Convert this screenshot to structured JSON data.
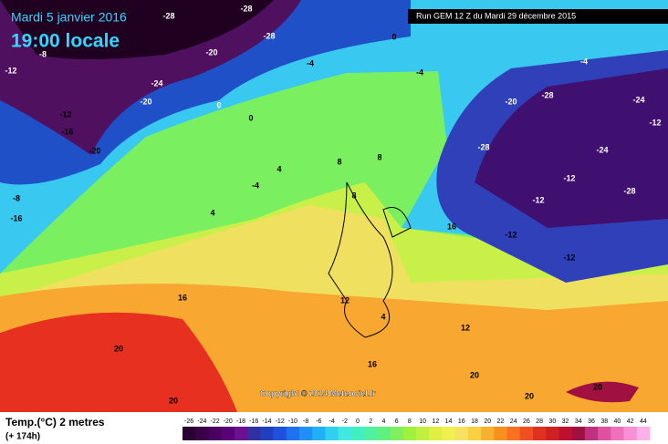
{
  "header": {
    "date": "Mardi 5 janvier 2016",
    "time": "19:00 locale",
    "run": "Run GEM 12 Z du Mardi 29 décembre 2015"
  },
  "map": {
    "copyright": "Copyright © 2014 Meteociel.fr",
    "contour_labels": [
      -28,
      -28,
      -28,
      -20,
      -24,
      -20,
      -20,
      -8,
      -12,
      -12,
      -16,
      -8,
      -16,
      0,
      0,
      0,
      -4,
      -4,
      8,
      8,
      8,
      4,
      -4,
      4,
      16,
      20,
      20,
      12,
      4,
      16,
      12,
      20,
      20,
      20,
      16,
      -12,
      -12,
      -12,
      -12,
      -24,
      -28,
      -28,
      -20,
      -28,
      -24,
      -12,
      -4
    ]
  },
  "legend": {
    "title": "Temp.(°C) 2 metres",
    "subtitle": "(+ 174h)",
    "labels": [
      -26,
      -24,
      -22,
      -20,
      -18,
      -16,
      -14,
      -12,
      -10,
      -8,
      -6,
      -4,
      -2,
      0,
      2,
      4,
      6,
      8,
      10,
      12,
      14,
      16,
      18,
      20,
      22,
      24,
      26,
      28,
      30,
      32,
      34,
      36,
      38,
      40,
      42,
      44
    ],
    "colors": [
      "#2a0030",
      "#3a0048",
      "#4a0060",
      "#5a0078",
      "#6a1090",
      "#3030a0",
      "#2040c0",
      "#2050e0",
      "#2070f0",
      "#2090f8",
      "#20b0f8",
      "#30d0f0",
      "#40e8e0",
      "#40f0c0",
      "#50f0a0",
      "#60f080",
      "#80f060",
      "#a0f040",
      "#c0f040",
      "#e0f040",
      "#f0f050",
      "#f8e060",
      "#f8d040",
      "#f8b030",
      "#f89020",
      "#f87020",
      "#f05020",
      "#e03020",
      "#d02020",
      "#c01030",
      "#a01040",
      "#c03080",
      "#e050a0",
      "#f070c0",
      "#f890d8",
      "#ffb0e8"
    ]
  }
}
